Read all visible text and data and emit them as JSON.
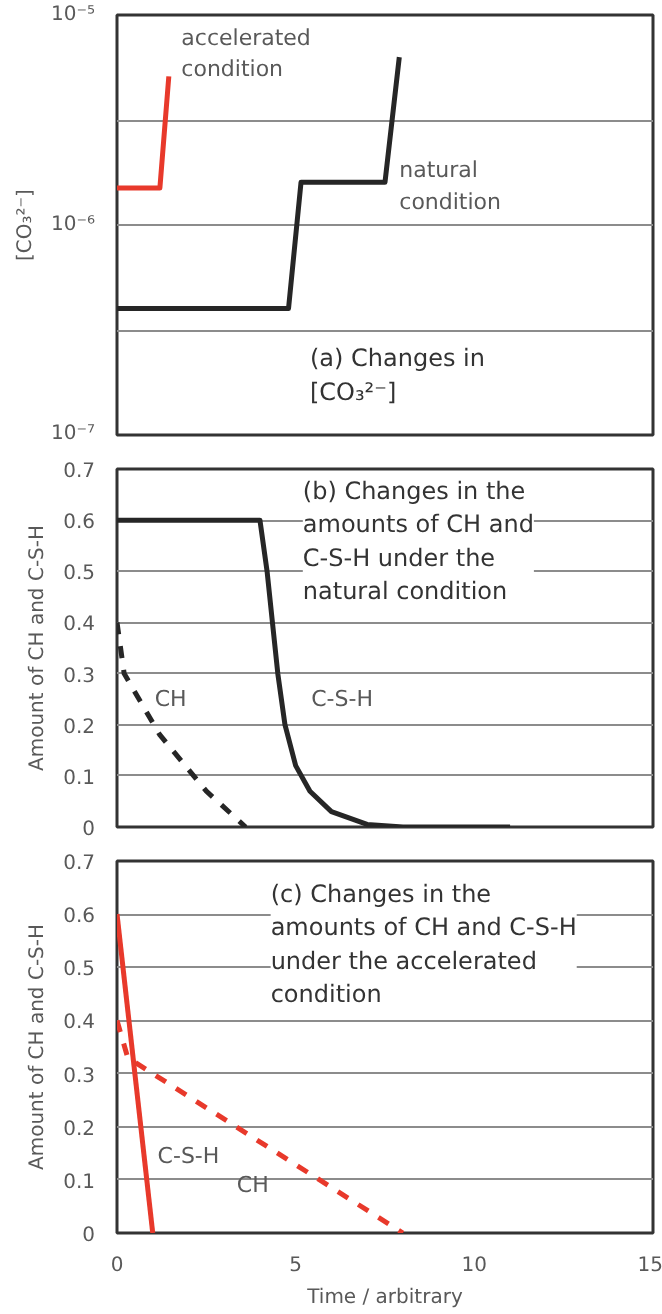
{
  "chart_data": [
    {
      "type": "line",
      "ylabel": "[CO₃²⁻]",
      "log": "y",
      "xlim": [
        0,
        15
      ],
      "ylim": [
        1e-07,
        1e-05
      ],
      "yticks": [
        {
          "value": 1e-07,
          "label": "10⁻⁷"
        },
        {
          "value": 3.16e-07,
          "label": null
        },
        {
          "value": 1e-06,
          "label": "10⁻⁶"
        },
        {
          "value": 3.16e-06,
          "label": null
        },
        {
          "value": 1e-05,
          "label": "10⁻⁵"
        }
      ],
      "grid": "y",
      "tick_labels": "y",
      "annotations": [
        "(a) Changes in [CO₃²⁻]"
      ],
      "series": [
        {
          "name": "accelerated condition",
          "color": "#e8392b",
          "x": [
            0,
            1.2,
            1.45
          ],
          "values": [
            1.5e-06,
            1.5e-06,
            5.1e-06
          ]
        },
        {
          "name": "natural condition",
          "color": "#262626",
          "x": [
            0,
            4.8,
            5.15,
            7.5,
            7.9
          ],
          "values": [
            4e-07,
            4e-07,
            1.6e-06,
            1.6e-06,
            6.3e-06
          ]
        }
      ]
    },
    {
      "type": "line",
      "ylabel": "Amount of CH and C-S-H",
      "xlim": [
        0,
        15
      ],
      "ylim": [
        0,
        0.7
      ],
      "yticks": [
        0,
        0.1,
        0.2,
        0.3,
        0.4,
        0.5,
        0.6,
        0.7
      ],
      "grid": "y",
      "tick_labels": "y",
      "annotations": [
        "(b) Changes in the amounts of CH and C-S-H under the natural condition"
      ],
      "series": [
        {
          "name": "CH",
          "color": "#262626",
          "line_style": "dashed",
          "x": [
            0,
            0.2,
            1.2,
            2.5,
            3.6
          ],
          "values": [
            0.4,
            0.3,
            0.18,
            0.07,
            0
          ]
        },
        {
          "name": "C-S-H",
          "color": "#262626",
          "line_style": "solid",
          "x": [
            0,
            4,
            4.2,
            4.35,
            4.5,
            4.7,
            5,
            5.4,
            6,
            7,
            8,
            11
          ],
          "values": [
            0.6,
            0.6,
            0.5,
            0.4,
            0.3,
            0.2,
            0.12,
            0.07,
            0.03,
            0.005,
            0,
            0
          ]
        }
      ]
    },
    {
      "type": "line",
      "ylabel": "Amount of CH and C-S-H",
      "xlabel": "Time / arbitrary",
      "xlim": [
        0,
        15
      ],
      "ylim": [
        0,
        0.7
      ],
      "xticks": [
        0,
        5,
        10,
        15
      ],
      "yticks": [
        0,
        0.1,
        0.2,
        0.3,
        0.4,
        0.5,
        0.6,
        0.7
      ],
      "grid": "y",
      "annotations": [
        "(c) Changes in the amounts of CH and C-S-H under the accelerated condition"
      ],
      "series": [
        {
          "name": "C-S-H",
          "color": "#e8392b",
          "line_style": "solid",
          "x": [
            0,
            1.0
          ],
          "values": [
            0.6,
            0
          ]
        },
        {
          "name": "CH",
          "color": "#e8392b",
          "line_style": "dashed",
          "x": [
            0,
            0.3,
            8
          ],
          "values": [
            0.4,
            0.33,
            0
          ]
        }
      ]
    }
  ]
}
